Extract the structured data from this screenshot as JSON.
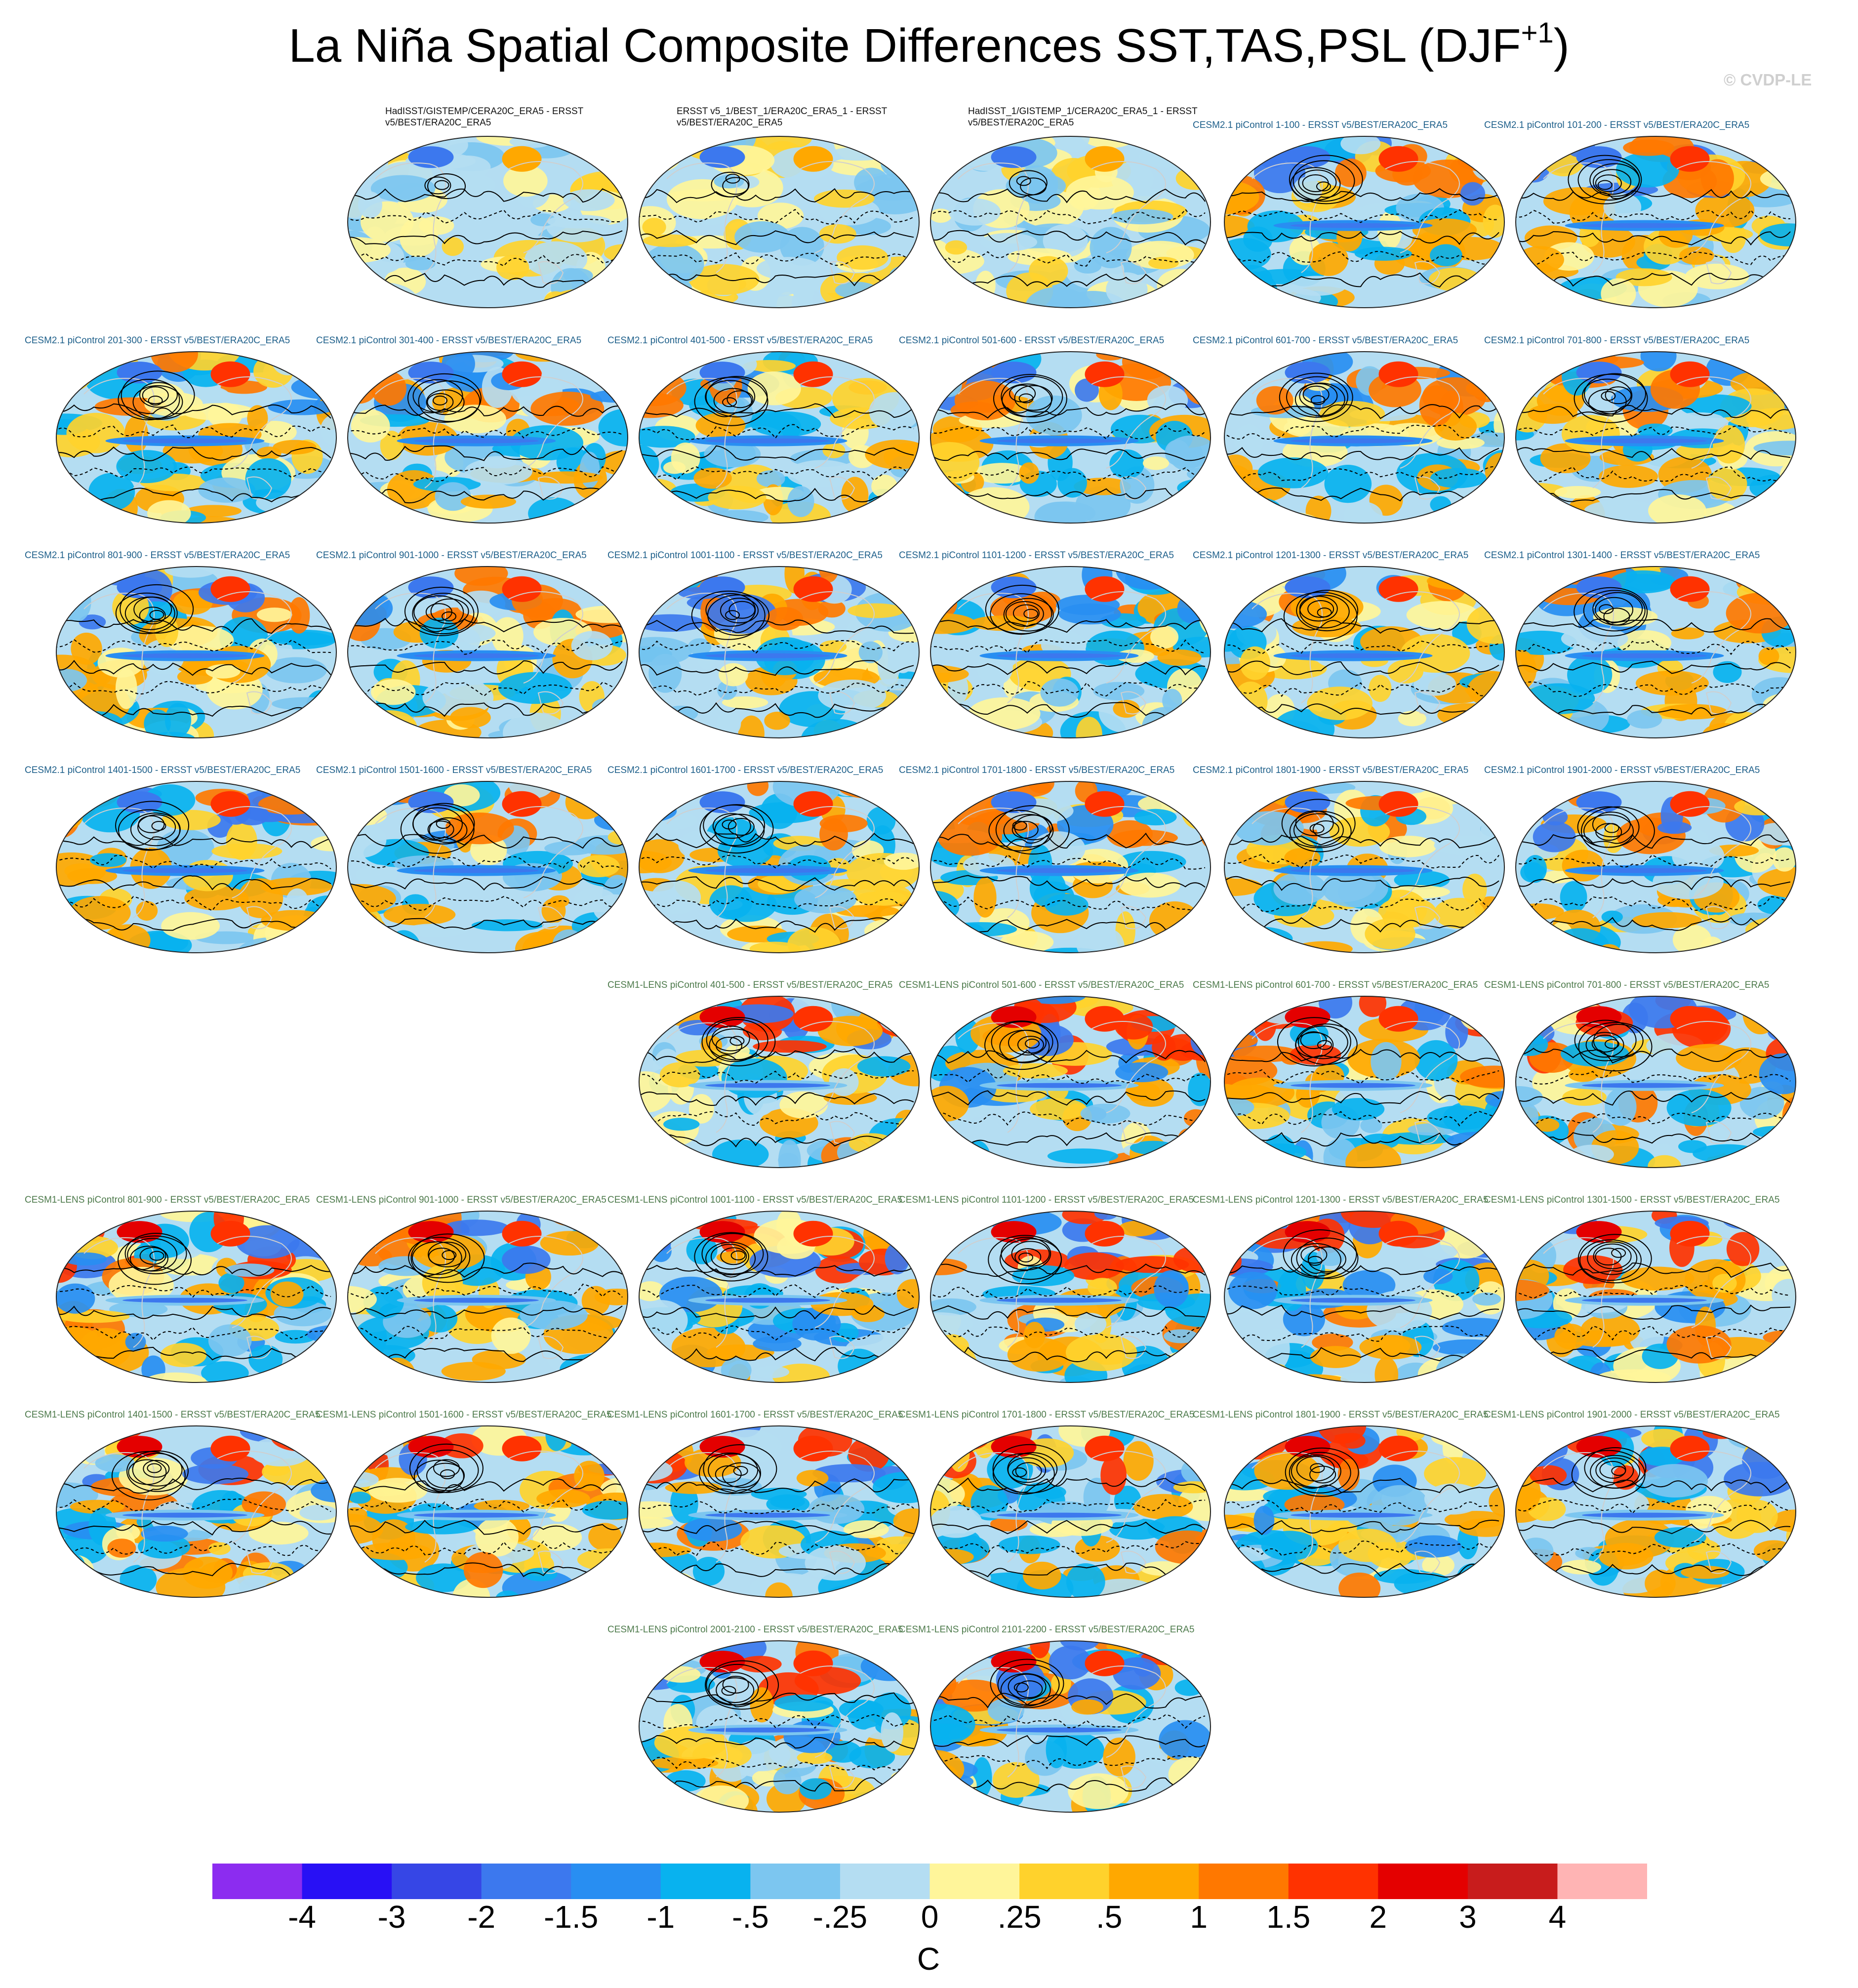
{
  "title": {
    "main": "La Niña Spatial Composite Differences SST,TAS,PSL (DJF",
    "sup": "+1",
    "close": ")"
  },
  "watermark": "© CVDP-LE",
  "colorbar": {
    "unit": "C",
    "labels": [
      "-4",
      "-3",
      "-2",
      "-1.5",
      "-1",
      "-.5",
      "-.25",
      "0",
      ".25",
      ".5",
      "1",
      "1.5",
      "2",
      "3",
      "4"
    ],
    "colors": [
      "#8c2cf0",
      "#2810f5",
      "#3646e6",
      "#3c78ee",
      "#288ef2",
      "#08b2ef",
      "#7cc6f0",
      "#b4ddf2",
      "#fff59a",
      "#ffd22c",
      "#ffa800",
      "#ff7800",
      "#ff3200",
      "#e40000",
      "#c81c1c",
      "#ffb4b4"
    ]
  },
  "panels": [
    {
      "label": "HadISST/GISTEMP/CERA20C_ERA5 - ERSST v5/BEST/ERA20C_ERA5",
      "group": "obs",
      "seed": 11,
      "amp": 0.45
    },
    {
      "label": "ERSST v5_1/BEST_1/ERA20C_ERA5_1 - ERSST v5/BEST/ERA20C_ERA5",
      "group": "obs",
      "seed": 12,
      "amp": 0.5
    },
    {
      "label": "HadISST_1/GISTEMP_1/CERA20C_ERA5_1 - ERSST v5/BEST/ERA20C_ERA5",
      "group": "obs",
      "seed": 13,
      "amp": 0.45
    },
    {
      "label": "CESM2.1 piControl 1-100 - ERSST v5/BEST/ERA20C_ERA5",
      "group": "cesm2",
      "seed": 21,
      "amp": 1.0
    },
    {
      "label": "CESM2.1 piControl 101-200 - ERSST v5/BEST/ERA20C_ERA5",
      "group": "cesm2",
      "seed": 22,
      "amp": 1.0
    },
    {
      "label": "CESM2.1 piControl 201-300 - ERSST v5/BEST/ERA20C_ERA5",
      "group": "cesm2",
      "seed": 23,
      "amp": 0.9
    },
    {
      "label": "CESM2.1 piControl 301-400 - ERSST v5/BEST/ERA20C_ERA5",
      "group": "cesm2",
      "seed": 24,
      "amp": 0.9
    },
    {
      "label": "CESM2.1 piControl 401-500 - ERSST v5/BEST/ERA20C_ERA5",
      "group": "cesm2",
      "seed": 25,
      "amp": 0.9
    },
    {
      "label": "CESM2.1 piControl 501-600 - ERSST v5/BEST/ERA20C_ERA5",
      "group": "cesm2",
      "seed": 26,
      "amp": 1.0
    },
    {
      "label": "CESM2.1 piControl 601-700 - ERSST v5/BEST/ERA20C_ERA5",
      "group": "cesm2",
      "seed": 27,
      "amp": 0.9
    },
    {
      "label": "CESM2.1 piControl 701-800 - ERSST v5/BEST/ERA20C_ERA5",
      "group": "cesm2",
      "seed": 28,
      "amp": 0.9
    },
    {
      "label": "CESM2.1 piControl 801-900 - ERSST v5/BEST/ERA20C_ERA5",
      "group": "cesm2",
      "seed": 29,
      "amp": 1.0
    },
    {
      "label": "CESM2.1 piControl 901-1000 - ERSST v5/BEST/ERA20C_ERA5",
      "group": "cesm2",
      "seed": 30,
      "amp": 0.9
    },
    {
      "label": "CESM2.1 piControl 1001-1100 - ERSST v5/BEST/ERA20C_ERA5",
      "group": "cesm2",
      "seed": 31,
      "amp": 1.0
    },
    {
      "label": "CESM2.1 piControl 1101-1200 - ERSST v5/BEST/ERA20C_ERA5",
      "group": "cesm2",
      "seed": 32,
      "amp": 0.9
    },
    {
      "label": "CESM2.1 piControl 1201-1300 - ERSST v5/BEST/ERA20C_ERA5",
      "group": "cesm2",
      "seed": 33,
      "amp": 0.9
    },
    {
      "label": "CESM2.1 piControl 1301-1400 - ERSST v5/BEST/ERA20C_ERA5",
      "group": "cesm2",
      "seed": 34,
      "amp": 0.9
    },
    {
      "label": "CESM2.1 piControl 1401-1500 - ERSST v5/BEST/ERA20C_ERA5",
      "group": "cesm2",
      "seed": 35,
      "amp": 1.0
    },
    {
      "label": "CESM2.1 piControl 1501-1600 - ERSST v5/BEST/ERA20C_ERA5",
      "group": "cesm2",
      "seed": 36,
      "amp": 0.9
    },
    {
      "label": "CESM2.1 piControl 1601-1700 - ERSST v5/BEST/ERA20C_ERA5",
      "group": "cesm2",
      "seed": 37,
      "amp": 0.9
    },
    {
      "label": "CESM2.1 piControl 1701-1800 - ERSST v5/BEST/ERA20C_ERA5",
      "group": "cesm2",
      "seed": 38,
      "amp": 0.9
    },
    {
      "label": "CESM2.1 piControl 1801-1900 - ERSST v5/BEST/ERA20C_ERA5",
      "group": "cesm2",
      "seed": 39,
      "amp": 0.9
    },
    {
      "label": "CESM2.1 piControl 1901-2000 - ERSST v5/BEST/ERA20C_ERA5",
      "group": "cesm2",
      "seed": 40,
      "amp": 1.0
    },
    {
      "label": "CESM1-LENS piControl 401-500 - ERSST v5/BEST/ERA20C_ERA5",
      "group": "lens",
      "seed": 51,
      "amp": 1.1
    },
    {
      "label": "CESM1-LENS piControl 501-600 - ERSST v5/BEST/ERA20C_ERA5",
      "group": "lens",
      "seed": 52,
      "amp": 1.2
    },
    {
      "label": "CESM1-LENS piControl 601-700 - ERSST v5/BEST/ERA20C_ERA5",
      "group": "lens",
      "seed": 53,
      "amp": 1.1
    },
    {
      "label": "CESM1-LENS piControl 701-800 - ERSST v5/BEST/ERA20C_ERA5",
      "group": "lens",
      "seed": 54,
      "amp": 1.2
    },
    {
      "label": "CESM1-LENS piControl 801-900 - ERSST v5/BEST/ERA20C_ERA5",
      "group": "lens",
      "seed": 55,
      "amp": 1.2
    },
    {
      "label": "CESM1-LENS piControl 901-1000 - ERSST v5/BEST/ERA20C_ERA5",
      "group": "lens",
      "seed": 56,
      "amp": 1.0
    },
    {
      "label": "CESM1-LENS piControl 1001-1100 - ERSST v5/BEST/ERA20C_ERA5",
      "group": "lens",
      "seed": 57,
      "amp": 1.2
    },
    {
      "label": "CESM1-LENS piControl 1101-1200 - ERSST v5/BEST/ERA20C_ERA5",
      "group": "lens",
      "seed": 58,
      "amp": 1.1
    },
    {
      "label": "CESM1-LENS piControl 1201-1300 - ERSST v5/BEST/ERA20C_ERA5",
      "group": "lens",
      "seed": 59,
      "amp": 1.2
    },
    {
      "label": "CESM1-LENS piControl 1301-1500 - ERSST v5/BEST/ERA20C_ERA5",
      "group": "lens",
      "seed": 60,
      "amp": 1.2
    },
    {
      "label": "CESM1-LENS piControl 1401-1500 - ERSST v5/BEST/ERA20C_ERA5",
      "group": "lens",
      "seed": 61,
      "amp": 1.2
    },
    {
      "label": "CESM1-LENS piControl 1501-1600 - ERSST v5/BEST/ERA20C_ERA5",
      "group": "lens",
      "seed": 62,
      "amp": 1.1
    },
    {
      "label": "CESM1-LENS piControl 1601-1700 - ERSST v5/BEST/ERA20C_ERA5",
      "group": "lens",
      "seed": 63,
      "amp": 1.1
    },
    {
      "label": "CESM1-LENS piControl 1701-1800 - ERSST v5/BEST/ERA20C_ERA5",
      "group": "lens",
      "seed": 64,
      "amp": 1.1
    },
    {
      "label": "CESM1-LENS piControl 1801-1900 - ERSST v5/BEST/ERA20C_ERA5",
      "group": "lens",
      "seed": 65,
      "amp": 1.2
    },
    {
      "label": "CESM1-LENS piControl 1901-2000 - ERSST v5/BEST/ERA20C_ERA5",
      "group": "lens",
      "seed": 66,
      "amp": 1.1
    },
    {
      "label": "CESM1-LENS piControl 2001-2100 - ERSST v5/BEST/ERA20C_ERA5",
      "group": "lens",
      "seed": 67,
      "amp": 1.1
    },
    {
      "label": "CESM1-LENS piControl 2101-2200 - ERSST v5/BEST/ERA20C_ERA5",
      "group": "lens",
      "seed": 68,
      "amp": 1.2
    }
  ]
}
